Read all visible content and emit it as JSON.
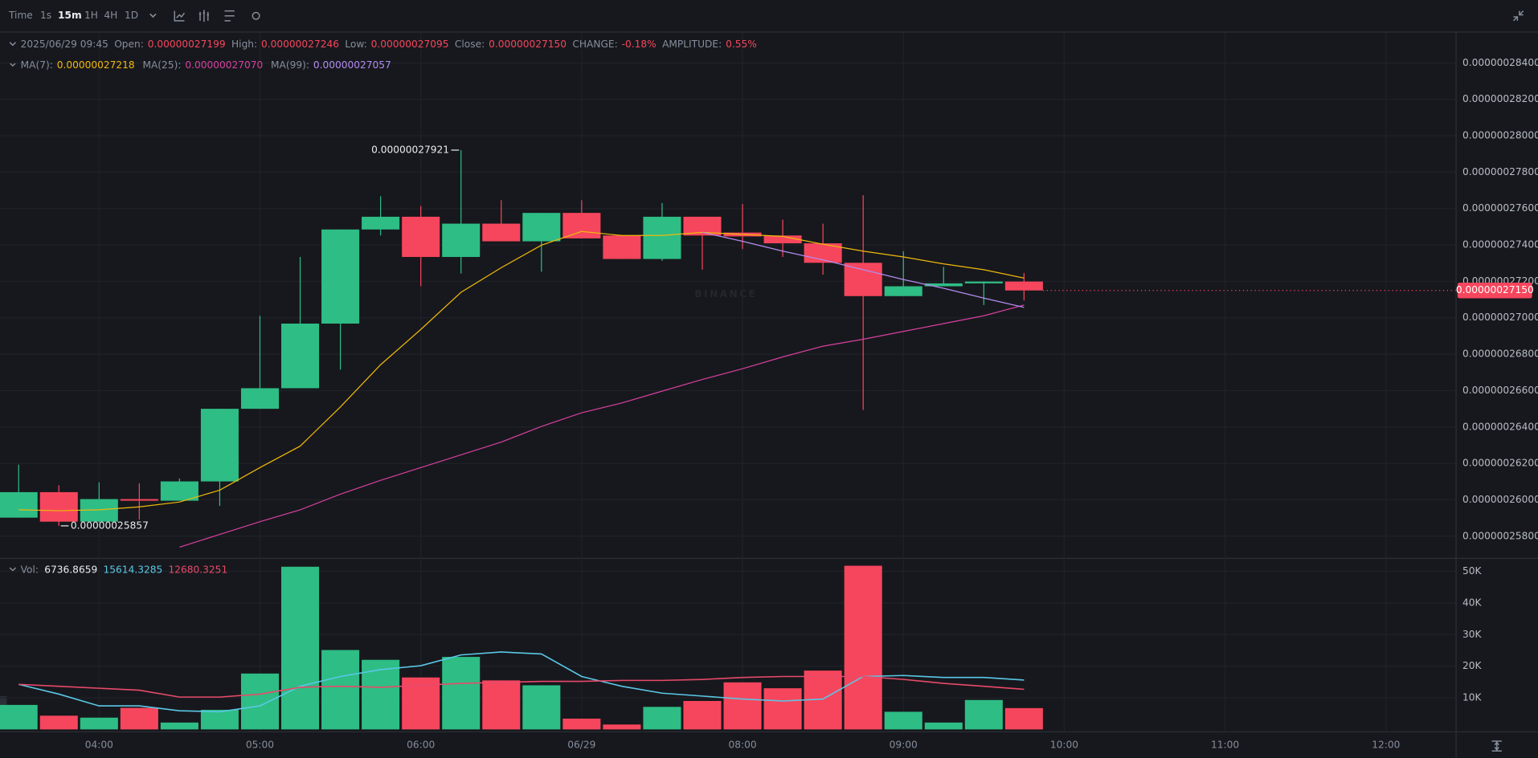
{
  "toolbar": {
    "intervals": [
      "Time",
      "1s",
      "15m",
      "1H",
      "4H",
      "1D"
    ]
  },
  "chart_data": [
    {
      "type": "candlestick",
      "info_bar": {
        "time": "2025/06/29 09:45",
        "fields": [
          {
            "label": "Open:",
            "value": "0.00000027199"
          },
          {
            "label": "High:",
            "value": "0.00000027246"
          },
          {
            "label": "Low:",
            "value": "0.00000027095"
          },
          {
            "label": "Close:",
            "value": "0.00000027150"
          },
          {
            "label": "CHANGE:",
            "value": "-0.18%"
          },
          {
            "label": "AMPLITUDE:",
            "value": "0.55%"
          }
        ]
      },
      "watermark": "BINANCE",
      "x": [
        3.5,
        3.75,
        4,
        4.25,
        4.5,
        4.75,
        5,
        5.25,
        5.5,
        5.75,
        6,
        6.25,
        6.5,
        6.75,
        7,
        7.25,
        7.5,
        7.75,
        8,
        8.25,
        8.5,
        8.75,
        9,
        9.25,
        9.5,
        9.75
      ],
      "open": [
        2.5902e-07,
        2.6042e-07,
        2.588e-07,
        2.6004e-07,
        2.5995e-07,
        2.6101e-07,
        2.65e-07,
        2.6613e-07,
        2.6968e-07,
        2.7485e-07,
        2.7555e-07,
        2.7334e-07,
        2.7517e-07,
        2.742e-07,
        2.7576e-07,
        2.7452e-07,
        2.7323e-07,
        2.7555e-07,
        2.7468e-07,
        2.7452e-07,
        2.7409e-07,
        2.7302e-07,
        2.7119e-07,
        2.7173e-07,
        2.7189e-07,
        2.7199e-07
      ],
      "high": [
        2.6193e-07,
        2.608e-07,
        2.6096e-07,
        2.6091e-07,
        2.6117e-07,
        2.65e-07,
        2.7011e-07,
        2.7334e-07,
        2.7485e-07,
        2.7668e-07,
        2.7614e-07,
        2.7921e-07,
        2.7646e-07,
        2.7576e-07,
        2.7646e-07,
        2.7452e-07,
        2.763e-07,
        2.7555e-07,
        2.7625e-07,
        2.7539e-07,
        2.7517e-07,
        2.7673e-07,
        2.7366e-07,
        2.728e-07,
        2.72e-07,
        2.7246e-07
      ],
      "low": [
        2.5902e-07,
        2.5857e-07,
        2.5875e-07,
        2.5891e-07,
        2.5998e-07,
        2.5967e-07,
        2.65e-07,
        2.6613e-07,
        2.6715e-07,
        2.7452e-07,
        2.7173e-07,
        2.7243e-07,
        2.742e-07,
        2.7253e-07,
        2.7436e-07,
        2.7323e-07,
        2.7313e-07,
        2.7264e-07,
        2.7377e-07,
        2.7334e-07,
        2.7237e-07,
        2.6494e-07,
        2.7119e-07,
        2.7173e-07,
        2.707e-07,
        2.7095e-07
      ],
      "close": [
        2.6042e-07,
        2.588e-07,
        2.6004e-07,
        2.5995e-07,
        2.6101e-07,
        2.65e-07,
        2.6613e-07,
        2.6968e-07,
        2.7485e-07,
        2.7555e-07,
        2.7334e-07,
        2.7517e-07,
        2.742e-07,
        2.7576e-07,
        2.7436e-07,
        2.7323e-07,
        2.7555e-07,
        2.7452e-07,
        2.7447e-07,
        2.7409e-07,
        2.7302e-07,
        2.7119e-07,
        2.7173e-07,
        2.7189e-07,
        2.7199e-07,
        2.715e-07
      ],
      "up_color": "#2ebd85",
      "down_color": "#f6465d",
      "series": [
        {
          "name": "MA(7)",
          "color": "#f0b90b",
          "legend_value": "0.00000027218",
          "values": [
            2.5945e-07,
            2.594e-07,
            2.5945e-07,
            2.5961e-07,
            2.5988e-07,
            2.6053e-07,
            2.6177e-07,
            2.6295e-07,
            2.651e-07,
            2.6742e-07,
            2.6936e-07,
            2.714e-07,
            2.7275e-07,
            2.7399e-07,
            2.7474e-07,
            2.7452e-07,
            2.7452e-07,
            2.7469e-07,
            2.7458e-07,
            2.7447e-07,
            2.7404e-07,
            2.7366e-07,
            2.7334e-07,
            2.7296e-07,
            2.7264e-07,
            2.7218e-07
          ]
        },
        {
          "name": "MA(25)",
          "color": "#d6409f",
          "legend_value": "0.00000027070",
          "values": [
            null,
            null,
            null,
            null,
            2.574e-07,
            2.581e-07,
            2.588e-07,
            2.5945e-07,
            2.6031e-07,
            2.6107e-07,
            2.6177e-07,
            2.6247e-07,
            2.6317e-07,
            2.6403e-07,
            2.6478e-07,
            2.6532e-07,
            2.6597e-07,
            2.6661e-07,
            2.672e-07,
            2.6785e-07,
            2.6844e-07,
            2.6882e-07,
            2.6925e-07,
            2.6968e-07,
            2.7011e-07,
            2.707e-07
          ]
        },
        {
          "name": "MA(99)",
          "color": "#b48cf0",
          "legend_value": "0.00000027057",
          "values": [
            null,
            null,
            null,
            null,
            null,
            null,
            null,
            null,
            null,
            null,
            null,
            null,
            null,
            null,
            null,
            null,
            null,
            2.7469e-07,
            2.742e-07,
            2.7366e-07,
            2.7318e-07,
            2.7264e-07,
            2.721e-07,
            2.7162e-07,
            2.7108e-07,
            2.7057e-07
          ]
        }
      ],
      "annotations": {
        "high": {
          "label": "0.00000027921",
          "index": 11
        },
        "low": {
          "label": "0.00000025857",
          "index": 1
        },
        "last_price": "0.00000027150"
      },
      "xlim": [
        3.384,
        12.433
      ],
      "xticks": [
        {
          "value": 4,
          "label": "04:00"
        },
        {
          "value": 5,
          "label": "05:00"
        },
        {
          "value": 6,
          "label": "06:00"
        },
        {
          "value": 7,
          "label": "06/29"
        },
        {
          "value": 8,
          "label": "08:00"
        },
        {
          "value": 9,
          "label": "09:00"
        },
        {
          "value": 10,
          "label": "10:00"
        },
        {
          "value": 11,
          "label": "11:00"
        },
        {
          "value": 12,
          "label": "12:00"
        }
      ],
      "ylim": [
        2.5681e-07,
        2.8567e-07
      ],
      "yticks": [
        {
          "value": 2.84e-07,
          "label": "0.00000028400"
        },
        {
          "value": 2.82e-07,
          "label": "0.00000028200"
        },
        {
          "value": 2.8e-07,
          "label": "0.00000028000"
        },
        {
          "value": 2.78e-07,
          "label": "0.00000027800"
        },
        {
          "value": 2.76e-07,
          "label": "0.00000027600"
        },
        {
          "value": 2.74e-07,
          "label": "0.00000027400"
        },
        {
          "value": 2.72e-07,
          "label": "0.00000027200"
        },
        {
          "value": 2.7e-07,
          "label": "0.00000027000"
        },
        {
          "value": 2.68e-07,
          "label": "0.00000026800"
        },
        {
          "value": 2.66e-07,
          "label": "0.00000026600"
        },
        {
          "value": 2.64e-07,
          "label": "0.00000026400"
        },
        {
          "value": 2.62e-07,
          "label": "0.00000026200"
        },
        {
          "value": 2.6e-07,
          "label": "0.00000026000"
        },
        {
          "value": 2.58e-07,
          "label": "0.00000025800"
        }
      ],
      "grid": true
    },
    {
      "type": "bar",
      "label": "Vol:",
      "values": [
        7750,
        4340,
        3720,
        6820,
        2170,
        6200,
        17670,
        51460,
        25110,
        22010,
        16430,
        22940,
        15500,
        13950,
        3410,
        1550,
        7130,
        8990,
        14880,
        13020,
        18600,
        51770,
        5580,
        2170,
        9300,
        6736.8659
      ],
      "series": [
        {
          "color": "#5ac8e6",
          "values": [
            14260,
            11160,
            7440,
            7440,
            5890,
            5580,
            7440,
            13640,
            16740,
            18910,
            20150,
            23560,
            24490,
            23870,
            16740,
            13640,
            11470,
            10540,
            9610,
            8990,
            9610,
            16740,
            17050,
            16430,
            16430,
            15614.3285
          ]
        },
        {
          "color": "#e84a6a",
          "values": [
            14260,
            13640,
            13020,
            12400,
            10230,
            10230,
            11160,
            13330,
            13640,
            13330,
            13950,
            14570,
            14880,
            15190,
            15190,
            15500,
            15500,
            15810,
            16430,
            16740,
            16740,
            16740,
            15810,
            14570,
            13640,
            12680.3251
          ]
        }
      ],
      "ylim": [
        0,
        53950
      ],
      "yticks": [
        {
          "value": 10000,
          "label": "10K"
        },
        {
          "value": 20000,
          "label": "20K"
        },
        {
          "value": 30000,
          "label": "30K"
        },
        {
          "value": 40000,
          "label": "40K"
        },
        {
          "value": 50000,
          "label": "50K"
        }
      ],
      "grid": true
    }
  ]
}
